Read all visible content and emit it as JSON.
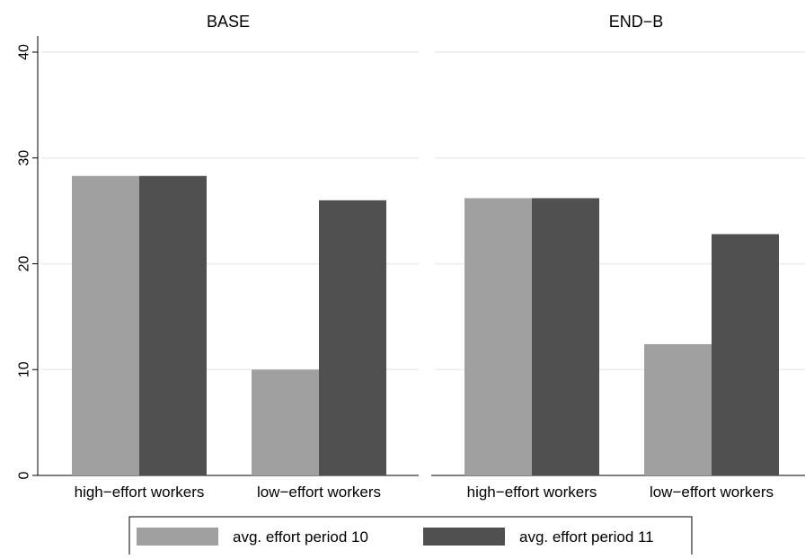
{
  "chart_data": {
    "type": "bar",
    "panels": [
      {
        "title": "BASE",
        "categories": [
          "high−effort workers",
          "low−effort workers"
        ],
        "series": [
          {
            "name": "avg. effort period 10",
            "values": [
              28.3,
              10.0
            ]
          },
          {
            "name": "avg. effort period 11",
            "values": [
              28.3,
              26.0
            ]
          }
        ]
      },
      {
        "title": "END−B",
        "categories": [
          "high−effort workers",
          "low−effort workers"
        ],
        "series": [
          {
            "name": "avg. effort period 10",
            "values": [
              26.2,
              12.4
            ]
          },
          {
            "name": "avg. effort period 11",
            "values": [
              26.2,
              22.8
            ]
          }
        ]
      }
    ],
    "ylim": [
      0,
      40
    ],
    "yticks": [
      "0",
      "10",
      "20",
      "30",
      "40"
    ],
    "xlabel": "",
    "ylabel": "",
    "grid": true,
    "legend": {
      "position": "bottom",
      "entries": [
        "avg. effort period 10",
        "avg. effort period 11"
      ]
    },
    "colors": {
      "period10": "#a0a0a0",
      "period11": "#505050",
      "grid": "#ececec",
      "axis": "#000000"
    }
  }
}
